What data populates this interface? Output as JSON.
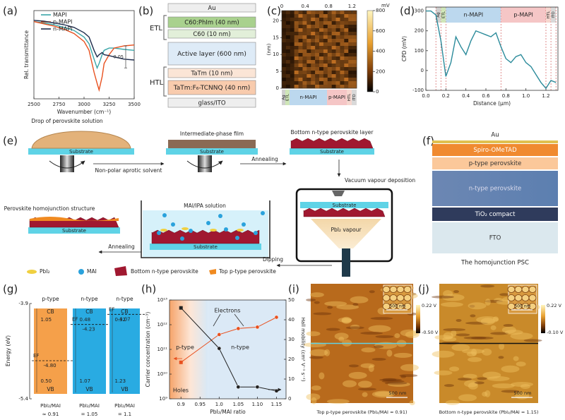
{
  "panel_labels": [
    "(a)",
    "(b)",
    "(c)",
    "(d)",
    "(e)",
    "(f)",
    "(g)",
    "(h)",
    "(i)",
    "(j)"
  ],
  "chart_data": [
    {
      "type": "line",
      "xlabel": "Wavenumber (cm⁻¹)",
      "ylabel": "Rel. transmittance",
      "scale_bar": 0.05,
      "legend": "upper left",
      "x": [
        2500,
        2600,
        2700,
        2800,
        2900,
        3000,
        3050,
        3100,
        3130,
        3150,
        3180,
        3200,
        3250,
        3300,
        3400,
        3500
      ],
      "xlim": [
        2500,
        3500
      ],
      "xticks": [
        2500,
        2750,
        3000,
        3250,
        3500
      ],
      "ylim": [
        0.8,
        1.0
      ],
      "series": [
        {
          "name": "MAPI",
          "color": "#3aa6a8",
          "values": [
            0.975,
            0.972,
            0.968,
            0.962,
            0.955,
            0.94,
            0.925,
            0.89,
            0.87,
            0.88,
            0.9,
            0.91,
            0.915,
            0.915,
            0.912,
            0.91
          ]
        },
        {
          "name": "p-MAPI",
          "color": "#e8501e",
          "values": [
            0.975,
            0.97,
            0.965,
            0.958,
            0.948,
            0.93,
            0.91,
            0.86,
            0.835,
            0.82,
            0.85,
            0.88,
            0.9,
            0.915,
            0.92,
            0.922
          ]
        },
        {
          "name": "n-MAPI",
          "color": "#1f2d4d",
          "values": [
            0.978,
            0.976,
            0.972,
            0.968,
            0.962,
            0.95,
            0.94,
            0.91,
            0.895,
            0.9,
            0.905,
            0.9,
            0.898,
            0.895,
            0.89,
            0.888
          ]
        }
      ]
    },
    {
      "type": "line",
      "xlabel": "Distance (μm)",
      "ylabel": "CPD (mV)",
      "x": [
        0,
        0.05,
        0.1,
        0.15,
        0.2,
        0.25,
        0.3,
        0.35,
        0.4,
        0.45,
        0.5,
        0.55,
        0.6,
        0.65,
        0.7,
        0.75,
        0.8,
        0.85,
        0.9,
        0.95,
        1.0,
        1.05,
        1.1,
        1.15,
        1.2,
        1.25,
        1.3
      ],
      "xlim": [
        0,
        1.32
      ],
      "xticks": [
        {
          "value": 0,
          "label": "0.0"
        },
        0.2,
        0.4,
        0.6,
        0.8,
        {
          "value": 1,
          "label": "1.0"
        },
        1.2
      ],
      "ylim": [
        -100,
        320
      ],
      "yticks": [
        -100,
        0,
        100,
        200,
        300
      ],
      "regions": [
        "Ag",
        "ETL",
        "n-MAPI",
        "p-MAPI",
        "HTL",
        "ITO"
      ],
      "series": [
        {
          "color": "#2a8a9a",
          "values": [
            300,
            300,
            280,
            150,
            -30,
            40,
            170,
            120,
            80,
            150,
            200,
            190,
            180,
            170,
            190,
            120,
            60,
            40,
            70,
            80,
            40,
            20,
            -20,
            -60,
            -90,
            -50,
            -60
          ]
        }
      ]
    },
    {
      "type": "line",
      "xlabel": "PbI₂/MAI ratio",
      "ylabel": "Carrier concentration (cm⁻³)",
      "y2label": "Hall mobility (cm² V⁻¹ s⁻¹)",
      "x": [
        0.9,
        1.0,
        1.05,
        1.1,
        1.15
      ],
      "xlim": [
        0.87,
        1.175
      ],
      "xticks": [
        0.9,
        0.95,
        {
          "value": 1,
          "label": "1.0"
        },
        1.05,
        {
          "value": 1.1,
          "label": "1.10"
        },
        1.15
      ],
      "log_y": true,
      "ylim": [
        1000000000.0,
        10000000000000.0
      ],
      "yticks": [
        {
          "value": 1000000000.0,
          "label": "10⁹"
        },
        {
          "value": 10000000000.0,
          "label": "10¹⁰"
        },
        {
          "value": 100000000000.0,
          "label": "10¹¹"
        },
        {
          "value": 1000000000000.0,
          "label": "10¹²"
        },
        {
          "value": 10000000000000.0,
          "label": "10¹³"
        }
      ],
      "y2lim": [
        0,
        50
      ],
      "y2ticks": [
        0,
        10,
        20,
        30,
        40,
        50
      ],
      "annotations": [
        "p-type",
        "n-type",
        "Electrons",
        "Holes"
      ],
      "series": [
        {
          "color": "#e8501e",
          "values": [
            30000000000.0,
            400000000000.0,
            700000000000.0,
            800000000000.0,
            2000000000000.0
          ]
        },
        {
          "color": "#222222",
          "axis": "y2",
          "values": [
            46,
            25.5,
            6,
            6,
            4
          ]
        }
      ]
    }
  ],
  "figure": {
    "b": {
      "layers": [
        "Au",
        "C60:PhIm (40 nm)",
        "C60 (10 nm)",
        "Active layer (600 nm)",
        "TaTm (10 nm)",
        "TaTm:F₆-TCNNQ (40 nm)",
        "glass/ITO"
      ],
      "groups": [
        "ETL",
        "HTL"
      ]
    },
    "c": {
      "xticks": [
        0,
        0.4,
        0.8,
        1.2
      ],
      "xlim": [
        0,
        1.28
      ],
      "yticks": [
        0,
        5,
        10,
        15,
        20
      ],
      "ylim": [
        0,
        23
      ],
      "ylabel": "(nm)",
      "colorbar_ticks": [
        0,
        200,
        400,
        600,
        800
      ],
      "colorbar_lim": [
        0,
        800
      ],
      "colorbar_unit": "mV",
      "regions": [
        "Ag",
        "ETL",
        "n-MAPI",
        "p-MAPI",
        "HTL",
        "ITO"
      ]
    },
    "e": {
      "steps": [
        "Drop of perovskite solution",
        "Non-polar aprotic solvent",
        "Intermediate-phase film",
        "Annealing",
        "Bottom n-type perovskite layer",
        "Vacuum vapour deposition",
        "PbI₂ vapour",
        "Dipping",
        "MAI/IPA solution",
        "Annealing",
        "Perovskite homojunction structure"
      ],
      "substrate": "Substrate",
      "legend": [
        "PbI₂",
        "MAI",
        "Bottom n-type perovskite",
        "Top p-type perovskite"
      ]
    },
    "f": {
      "layers": [
        "Au",
        "Spiro-OMeTAD",
        "p-type perovskite",
        "n-type perovskite",
        "TiO₂ compact",
        "FTO"
      ],
      "caption": "The homojunction PSC"
    },
    "g": {
      "ylabel": "Energy (eV)",
      "ylim": [
        -5.4,
        -3.9
      ],
      "yticks": [
        -3.9,
        -5.4
      ],
      "columns": [
        {
          "type": "p-type",
          "cb": "CB",
          "gap_above": 1.05,
          "ef_label": "EF",
          "ef": {
            "value": -4.8,
            "label": "-4.80"
          },
          "gap_below": {
            "value": 0.5,
            "label": "0.50"
          },
          "vb": "VB",
          "ratio_label": "PbI₂/MAI",
          "ratio": "≈ 0.91"
        },
        {
          "type": "n-type",
          "cb": "CB",
          "gap_above": 0.48,
          "ef_label": "EF",
          "ef": -4.23,
          "gap_below": 1.07,
          "vb": "VB",
          "ratio_label": "PbI₂/MAI",
          "ratio": "= 1.05"
        },
        {
          "type": "n-type",
          "cb": "CB",
          "gap_above": 0.32,
          "ef_label": "EF",
          "ef": -4.07,
          "gap_below": 1.23,
          "vb": "VB",
          "ratio_label": "PbI₂/MAI",
          "ratio": "= 1.1"
        }
      ]
    },
    "i": {
      "colorbar": [
        "0.22 V",
        "-0.50 V"
      ],
      "scale_bar": "500 nm",
      "inset_scale_bar": "500 nm",
      "caption": "Top p-type perovskite (PbI₂/MAI ≈ 0.91)"
    },
    "j": {
      "colorbar": [
        "0.22 V",
        "-0.10 V"
      ],
      "scale_bar": "500 nm",
      "inset_scale_bar": "500 nm",
      "caption": "Bottom n-type perovskite (PbI₂/MAI = 1.15)"
    }
  }
}
